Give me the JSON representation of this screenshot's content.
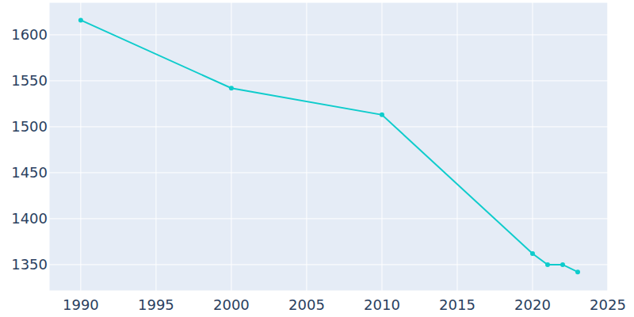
{
  "chart_data": {
    "type": "line",
    "x": [
      1990,
      2000,
      2010,
      2020,
      2021,
      2022,
      2023
    ],
    "values": [
      1616,
      1542,
      1513,
      1362,
      1350,
      1350,
      1342
    ],
    "color": "#0fcccc",
    "marker": "circle",
    "xlim": [
      1987.9,
      2025
    ],
    "xticks": [
      1990,
      1995,
      2000,
      2005,
      2010,
      2015,
      2020,
      2025
    ],
    "ylim": [
      1321.5,
      1635.3
    ],
    "yticks": [
      1350,
      1400,
      1450,
      1500,
      1550,
      1600
    ],
    "grid": true
  }
}
